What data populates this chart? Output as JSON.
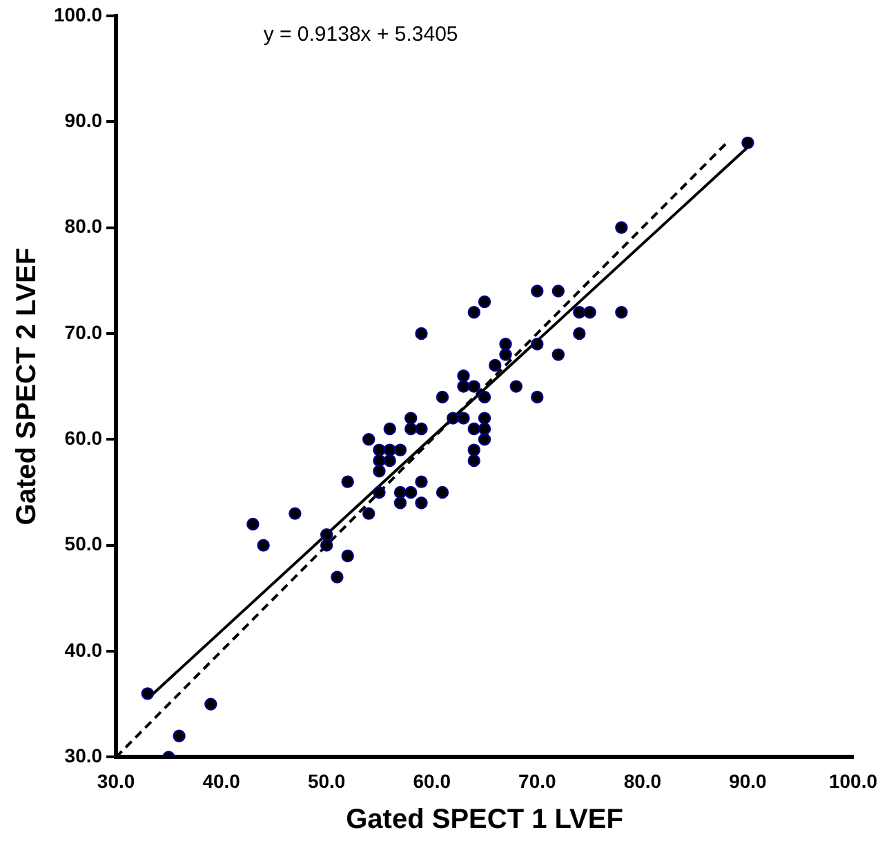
{
  "chart_data": {
    "type": "scatter",
    "xlabel": "Gated SPECT 1 LVEF",
    "ylabel": "Gated SPECT 2 LVEF",
    "xlim": [
      30,
      100
    ],
    "ylim": [
      30,
      100
    ],
    "xticks": [
      {
        "value": 30,
        "label": "30.0"
      },
      {
        "value": 40,
        "label": "40.0"
      },
      {
        "value": 50,
        "label": "50.0"
      },
      {
        "value": 60,
        "label": "60.0"
      },
      {
        "value": 70,
        "label": "70.0"
      },
      {
        "value": 80,
        "label": "80.0"
      },
      {
        "value": 90,
        "label": "90.0"
      },
      {
        "value": 100,
        "label": "100.0"
      }
    ],
    "yticks": [
      {
        "value": 30,
        "label": "30.0"
      },
      {
        "value": 40,
        "label": "40.0"
      },
      {
        "value": 50,
        "label": "50.0"
      },
      {
        "value": 60,
        "label": "60.0"
      },
      {
        "value": 70,
        "label": "70.0"
      },
      {
        "value": 80,
        "label": "80.0"
      },
      {
        "value": 90,
        "label": "90.0"
      },
      {
        "value": 100,
        "label": "100.0"
      }
    ],
    "annotations": [
      "y = 0.9138x + 5.3405"
    ],
    "series": [
      {
        "color": "#000080",
        "marker": "circle",
        "x": [
          33,
          35,
          36,
          39,
          43,
          44,
          47,
          50,
          50,
          52,
          51,
          52,
          54,
          54,
          55,
          56,
          57,
          55,
          56,
          55,
          55,
          56,
          57,
          57,
          58,
          58,
          58,
          59,
          59,
          59,
          59,
          61,
          61,
          62,
          63,
          63,
          63,
          64,
          64,
          65,
          65,
          64,
          65,
          65,
          65,
          64,
          64,
          66,
          67,
          67,
          68,
          70,
          70,
          70,
          72,
          72,
          74,
          75,
          74,
          78,
          78,
          90
        ],
        "values": [
          36,
          30,
          32,
          35,
          52,
          50,
          53,
          51,
          50,
          49,
          47,
          56,
          53,
          60,
          59,
          59,
          59,
          58,
          58,
          57,
          55,
          61,
          55,
          54,
          55,
          62,
          61,
          61,
          56,
          54,
          70,
          55,
          64,
          62,
          62,
          66,
          65,
          65,
          72,
          73,
          64,
          61,
          62,
          61,
          60,
          59,
          58,
          67,
          69,
          68,
          65,
          74,
          69,
          64,
          74,
          68,
          72,
          72,
          70,
          80,
          72,
          88
        ]
      },
      {
        "type": "line",
        "color": "#000000",
        "marker": "none",
        "line_style": "solid",
        "x": [
          33,
          90
        ],
        "values": [
          35.5,
          87.6
        ]
      },
      {
        "type": "line",
        "color": "#000000",
        "marker": "none",
        "line_style": "dashed",
        "x": [
          30,
          88
        ],
        "values": [
          30,
          88
        ]
      }
    ]
  }
}
